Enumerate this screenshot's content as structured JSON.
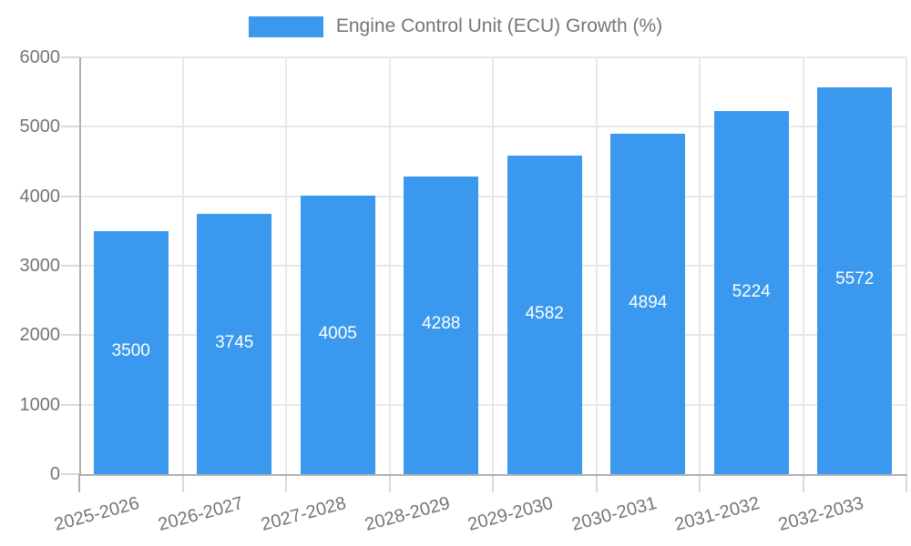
{
  "chart_data": {
    "type": "bar",
    "title": "Engine Control Unit (ECU) Growth (%)",
    "categories": [
      "2025-2026",
      "2026-2027",
      "2027-2028",
      "2028-2029",
      "2029-2030",
      "2030-2031",
      "2031-2032",
      "2032-2033"
    ],
    "series": [
      {
        "name": "Engine Control Unit (ECU) Growth (%)",
        "color": "#3a99ee",
        "values": [
          3500,
          3745,
          4005,
          4288,
          4582,
          4894,
          5224,
          5572
        ]
      }
    ],
    "xlabel": "",
    "ylabel": "",
    "ylim": [
      0,
      6000
    ],
    "yticks": [
      0,
      1000,
      2000,
      3000,
      4000,
      5000,
      6000
    ],
    "grid": true,
    "legend_position": "top",
    "value_labels_position": "inside-center",
    "x_tick_rotation_deg": -15
  },
  "colors": {
    "bar": "#3a99ee",
    "axis_text": "#757575",
    "value_label_text": "#ffffff",
    "gridline": "#e8e8e8",
    "tick": "#d9d9d9",
    "axis_line": "#b0b0b0",
    "background": "#ffffff"
  }
}
